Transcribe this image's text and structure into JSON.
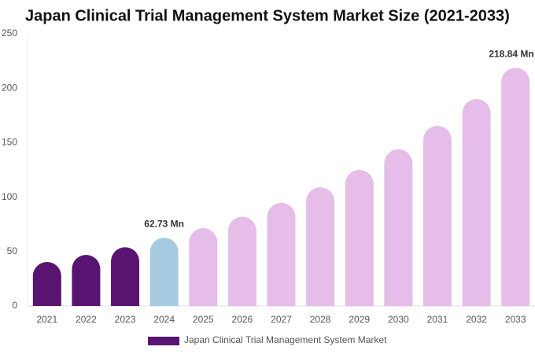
{
  "chart_data": {
    "type": "bar",
    "title": "Japan Clinical Trial Management System Market Size (2021-2033)",
    "categories": [
      "2021",
      "2022",
      "2023",
      "2024",
      "2025",
      "2026",
      "2027",
      "2028",
      "2029",
      "2030",
      "2031",
      "2032",
      "2033"
    ],
    "series": [
      {
        "name": "Japan Clinical Trial Management System Market",
        "color": "#581470",
        "colors": [
          "#581470",
          "#581470",
          "#581470",
          "#a6cbe0",
          "#e6bde8",
          "#e6bde8",
          "#e6bde8",
          "#e6bde8",
          "#e6bde8",
          "#e6bde8",
          "#e6bde8",
          "#e6bde8",
          "#e6bde8"
        ],
        "values": [
          40.5,
          47,
          54,
          62.73,
          71.5,
          82,
          94.7,
          109,
          125,
          144,
          165.5,
          190,
          218.84
        ],
        "value_labels": [
          null,
          null,
          null,
          "62.73 Mn",
          null,
          null,
          null,
          null,
          null,
          null,
          null,
          null,
          "218.84 Mn"
        ]
      }
    ],
    "ylim": [
      0,
      250
    ],
    "yticks": [
      0,
      50,
      100,
      150,
      200,
      250
    ],
    "grid": false
  }
}
